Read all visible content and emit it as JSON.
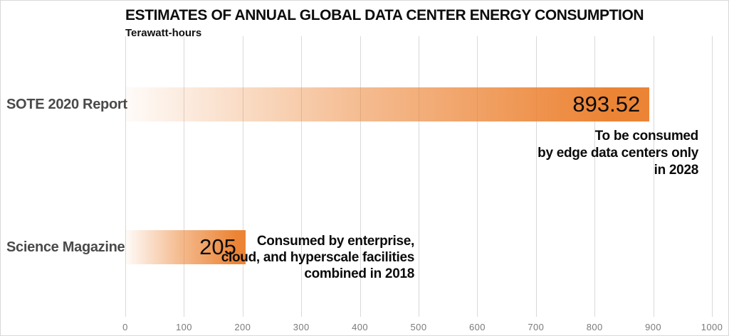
{
  "title": "ESTIMATES OF ANNUAL GLOBAL DATA CENTER ENERGY CONSUMPTION",
  "subtitle": "Terawatt-hours",
  "colors": {
    "bar_orange": "#EC8435",
    "grid": "#D9D9D9",
    "tick_gray": "#7A7A7A",
    "category_gray": "#4A4A4A"
  },
  "chart_data": {
    "type": "bar",
    "orientation": "horizontal",
    "title": "ESTIMATES OF ANNUAL GLOBAL DATA CENTER ENERGY CONSUMPTION",
    "subtitle": "Terawatt-hours",
    "xlabel": "Terawatt-hours",
    "ylabel": "",
    "xlim": [
      0,
      1000
    ],
    "x_ticks": [
      "0",
      "100",
      "200",
      "300",
      "400",
      "500",
      "600",
      "700",
      "800",
      "900",
      "1000"
    ],
    "grid": true,
    "legend": false,
    "bar_style": "gradient white-to-orange, value label inside right end",
    "categories": [
      "SOTE 2020 Report",
      "Science Magazine"
    ],
    "values": [
      893.52,
      205
    ],
    "value_labels": [
      "893.52",
      "205"
    ],
    "annotations": [
      {
        "for_category": "SOTE 2020 Report",
        "lines": [
          "To be consumed",
          "by edge data centers only",
          "in 2028"
        ]
      },
      {
        "for_category": "Science Magazine",
        "lines": [
          "Consumed by enterprise,",
          "cloud, and hyperscale facilities",
          "combined in 2018"
        ]
      }
    ]
  }
}
